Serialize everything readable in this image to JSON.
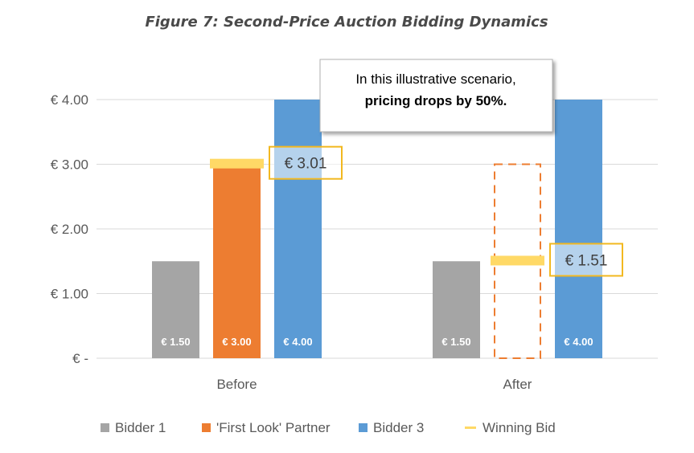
{
  "chart_data": {
    "type": "bar",
    "title": "Figure 7: Second-Price Auction Bidding Dynamics",
    "categories": [
      "Before",
      "After"
    ],
    "series": [
      {
        "name": "Bidder 1",
        "color": "#a5a5a5",
        "values": [
          1.5,
          1.5
        ],
        "labels": [
          "€ 1.50",
          "€ 1.50"
        ]
      },
      {
        "name": "'First Look' Partner",
        "color": "#ed7d31",
        "values": [
          3.0,
          3.0
        ],
        "labels": [
          "€ 3.00",
          ""
        ],
        "style": [
          "solid",
          "dashed-outline"
        ]
      },
      {
        "name": "Bidder 3",
        "color": "#5b9bd5",
        "values": [
          4.0,
          4.0
        ],
        "labels": [
          "€ 4.00",
          "€ 4.00"
        ]
      }
    ],
    "winning_bid": {
      "name": "Winning Bid",
      "color": "#ffd966",
      "values": [
        3.01,
        1.51
      ],
      "callouts": [
        "€ 3.01",
        "€ 1.51"
      ]
    },
    "y_ticks": [
      {
        "value": 0,
        "label": "€ -"
      },
      {
        "value": 1,
        "label": "€ 1.00"
      },
      {
        "value": 2,
        "label": "€ 2.00"
      },
      {
        "value": 3,
        "label": "€ 3.00"
      },
      {
        "value": 4,
        "label": "€ 4.00"
      }
    ],
    "ylim": [
      0,
      4.25
    ],
    "grid": true,
    "legend": "bottom",
    "annotation": {
      "line1": "In this illustrative scenario,",
      "line2": "pricing drops by 50%."
    }
  }
}
